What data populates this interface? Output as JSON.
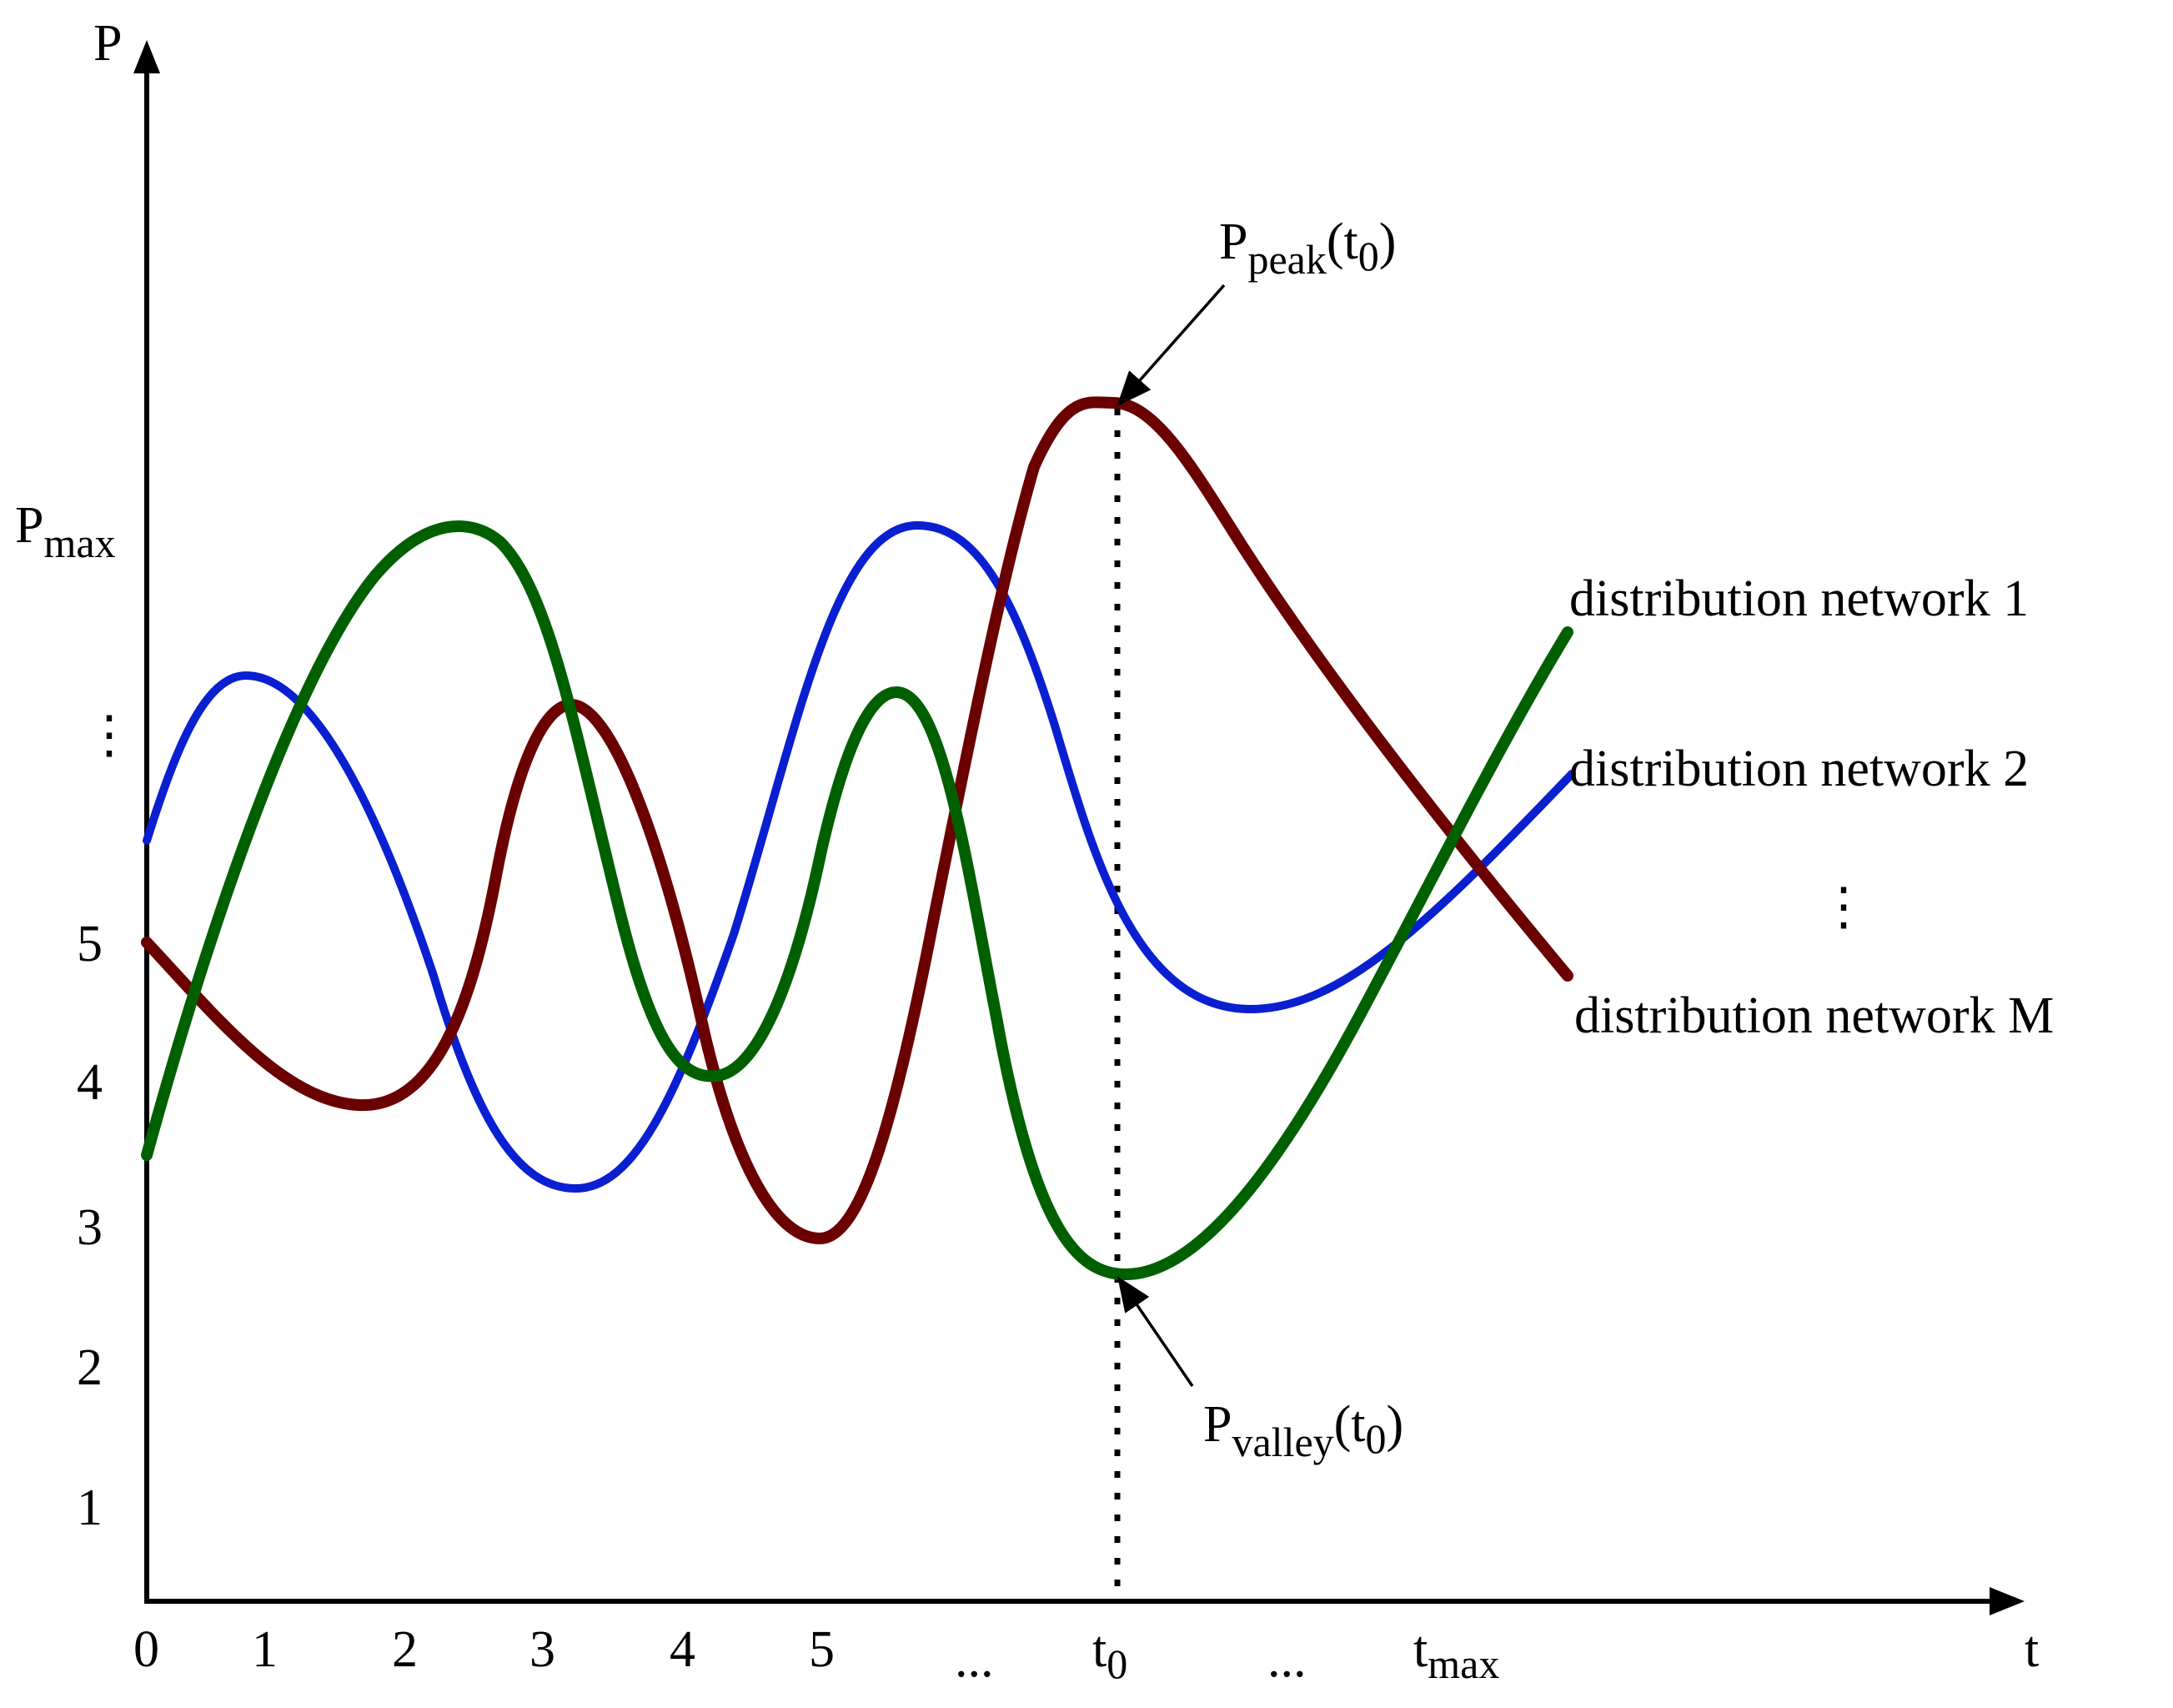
{
  "axes": {
    "y_label": "P",
    "x_label": "t",
    "y_max_label": {
      "main": "P",
      "sub": "max"
    },
    "y_ticks": [
      "1",
      "2",
      "3",
      "4",
      "5",
      "⋮"
    ],
    "x_ticks": [
      "0",
      "1",
      "2",
      "3",
      "4",
      "5",
      "...",
      "...",
      "..."
    ],
    "x_t0_label": {
      "main": "t",
      "sub": "0"
    },
    "x_tmax_label": {
      "main": "t",
      "sub": "max"
    }
  },
  "annotations": {
    "peak": {
      "main": "P",
      "sub": "peak",
      "tail_pre": "(t",
      "tail_sub": "0",
      "tail_post": ")"
    },
    "valley": {
      "main": "P",
      "sub": "valley",
      "tail_pre": "(t",
      "tail_sub": "0",
      "tail_post": ")"
    }
  },
  "legend": {
    "items": [
      "distribution network 1",
      "distribution network 2",
      "distribution network M"
    ],
    "ellipsis": "⋮"
  },
  "colors": {
    "network_1": "#006000",
    "network_2": "#0a1fd0",
    "network_M": "#6b0000",
    "axis": "#000000"
  }
}
